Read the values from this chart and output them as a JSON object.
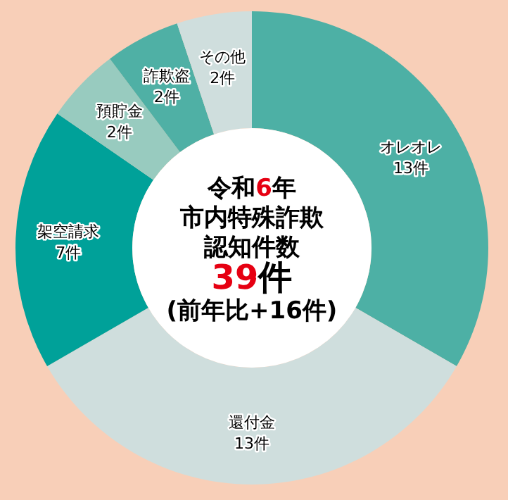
{
  "chart_data": {
    "type": "donut",
    "annotations": [
      "令和6年",
      "市内特殊詐欺",
      "認知件数",
      "39件",
      "(前年比+16件)"
    ],
    "categories": [
      "オレオレ",
      "還付金",
      "架空請求",
      "預貯金",
      "詐欺盗",
      "その他"
    ],
    "values": [
      13,
      13,
      7,
      2,
      2,
      2
    ],
    "colors": [
      "#4db0a5",
      "#cfdedd",
      "#00a199",
      "#98cbbf",
      "#4fb0a5",
      "#cfdedd"
    ],
    "value_labels": [
      "13件",
      "13件",
      "7件",
      "2件",
      "2件",
      "2件"
    ]
  }
}
